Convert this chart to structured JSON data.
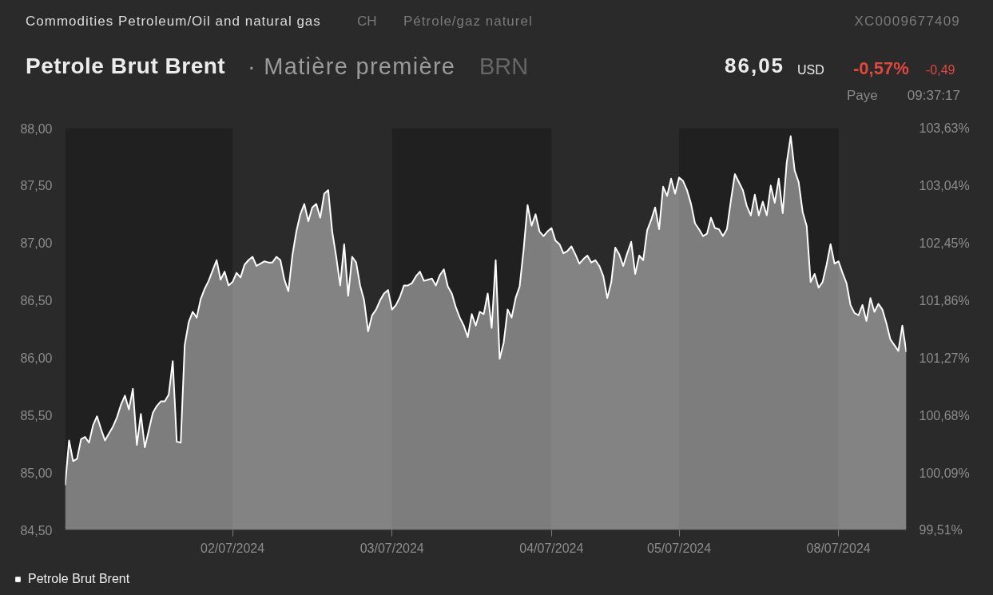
{
  "chart_data": {
    "type": "area",
    "title": "Petrole Brut Brent",
    "annotations": [
      "Commodities Petroleum/Oil and natural gas",
      "CH",
      "Pétrole/gaz naturel",
      "XC0009677409",
      "· Matière première",
      "BRN",
      "86,05",
      "USD",
      "-0,57%",
      "-0,49",
      "Paye",
      "09:37:17"
    ],
    "categories": [
      null,
      null,
      null,
      null,
      null,
      null,
      null,
      null,
      null,
      null,
      null,
      null,
      null,
      null,
      null,
      null,
      null,
      null,
      null,
      null,
      null,
      null,
      null,
      null,
      null,
      null,
      null,
      null,
      null,
      null,
      null,
      null,
      null,
      null,
      null,
      null,
      null,
      null,
      null,
      null,
      null,
      null,
      "02/07/2024",
      null,
      null,
      null,
      null,
      null,
      null,
      null,
      null,
      null,
      null,
      null,
      null,
      null,
      null,
      null,
      null,
      null,
      null,
      null,
      null,
      null,
      null,
      null,
      null,
      null,
      null,
      null,
      null,
      null,
      null,
      null,
      null,
      null,
      null,
      null,
      null,
      null,
      null,
      null,
      "03/07/2024",
      null,
      null,
      null,
      null,
      null,
      null,
      null,
      null,
      null,
      null,
      null,
      null,
      null,
      null,
      null,
      null,
      null,
      null,
      null,
      null,
      null,
      null,
      null,
      null,
      null,
      null,
      null,
      null,
      null,
      null,
      null,
      null,
      null,
      null,
      null,
      null,
      null,
      null,
      null,
      "04/07/2024",
      null,
      null,
      null,
      null,
      null,
      null,
      null,
      null,
      null,
      null,
      null,
      null,
      null,
      null,
      null,
      null,
      null,
      null,
      null,
      null,
      null,
      null,
      null,
      null,
      null,
      null,
      null,
      null,
      null,
      null,
      null,
      "05/07/2024",
      null,
      null,
      null,
      null,
      null,
      null,
      null,
      null,
      null,
      null,
      null,
      null,
      null,
      null,
      null,
      null,
      null,
      null,
      null,
      null,
      null,
      null,
      null,
      null,
      null,
      null,
      null,
      null,
      null,
      null,
      null,
      null,
      null,
      null,
      null,
      null,
      null,
      null,
      null,
      "08/07/2024",
      null,
      null,
      null,
      null,
      null,
      null,
      null,
      null,
      null,
      null,
      null,
      null,
      null,
      null,
      null,
      null,
      null
    ],
    "series": [
      {
        "name": "Petrole Brut Brent",
        "color": "#ffffff",
        "values": [
          84.89,
          85.28,
          85.1,
          85.12,
          85.29,
          85.31,
          85.26,
          85.41,
          85.49,
          85.38,
          85.28,
          85.34,
          85.4,
          85.48,
          85.59,
          85.67,
          85.55,
          85.73,
          85.24,
          85.51,
          85.22,
          85.37,
          85.52,
          85.58,
          85.62,
          85.62,
          85.68,
          85.97,
          85.27,
          85.26,
          86.11,
          86.31,
          86.4,
          86.35,
          86.51,
          86.6,
          86.67,
          86.76,
          86.85,
          86.68,
          86.75,
          86.63,
          86.66,
          86.74,
          86.7,
          86.81,
          86.85,
          86.88,
          86.8,
          86.82,
          86.84,
          86.83,
          86.83,
          86.88,
          86.85,
          86.68,
          86.58,
          86.89,
          87.1,
          87.25,
          87.34,
          87.19,
          87.31,
          87.34,
          87.22,
          87.43,
          87.46,
          87.1,
          86.88,
          86.63,
          86.99,
          86.54,
          86.88,
          86.83,
          86.63,
          86.5,
          86.23,
          86.37,
          86.42,
          86.5,
          86.56,
          86.59,
          86.42,
          86.46,
          86.53,
          86.63,
          86.63,
          86.65,
          86.71,
          86.75,
          86.67,
          86.68,
          86.69,
          86.63,
          86.72,
          86.77,
          86.62,
          86.56,
          86.44,
          86.35,
          86.28,
          86.18,
          86.38,
          86.28,
          86.4,
          86.38,
          86.56,
          86.26,
          86.85,
          85.99,
          86.13,
          86.42,
          86.35,
          86.52,
          86.62,
          86.94,
          87.33,
          87.15,
          87.25,
          87.1,
          87.06,
          87.1,
          87.13,
          87.02,
          86.99,
          86.91,
          86.93,
          86.97,
          86.9,
          86.82,
          86.86,
          86.89,
          86.83,
          86.85,
          86.8,
          86.71,
          86.52,
          86.66,
          86.96,
          86.9,
          86.8,
          86.91,
          87.01,
          86.73,
          86.89,
          86.85,
          87.11,
          87.2,
          87.31,
          87.12,
          87.49,
          87.41,
          87.56,
          87.43,
          87.57,
          87.54,
          87.46,
          87.34,
          87.17,
          87.12,
          87.06,
          87.08,
          87.22,
          87.13,
          87.12,
          87.06,
          87.12,
          87.37,
          87.6,
          87.53,
          87.46,
          87.32,
          87.24,
          87.42,
          87.24,
          87.36,
          87.24,
          87.5,
          87.35,
          87.56,
          87.26,
          87.7,
          87.93,
          87.63,
          87.53,
          87.27,
          87.15,
          86.66,
          86.73,
          86.61,
          86.66,
          86.81,
          86.99,
          86.82,
          86.84,
          86.74,
          86.65,
          86.46,
          86.39,
          86.37,
          86.46,
          86.32,
          86.52,
          86.4,
          86.47,
          86.42,
          86.3,
          86.16,
          86.11,
          86.06,
          86.28,
          86.05
        ]
      }
    ],
    "ylim": [
      84.5,
      88.0
    ],
    "yticks": [
      {
        "value": 84.5,
        "label": "84,50"
      },
      {
        "value": 85.0,
        "label": "85,00"
      },
      {
        "value": 85.5,
        "label": "85,50"
      },
      {
        "value": 86.0,
        "label": "86,00"
      },
      {
        "value": 86.5,
        "label": "86,50"
      },
      {
        "value": 87.0,
        "label": "87,00"
      },
      {
        "value": 87.5,
        "label": "87,50"
      },
      {
        "value": 88.0,
        "label": "88,00"
      }
    ],
    "y2lim": [
      99.51,
      103.63
    ],
    "y2ticks": [
      {
        "value": 99.51,
        "label": "99,51%"
      },
      {
        "value": 100.09,
        "label": "100,09%"
      },
      {
        "value": 100.68,
        "label": "100,68%"
      },
      {
        "value": 101.27,
        "label": "101,27%"
      },
      {
        "value": 101.86,
        "label": "101,86%"
      },
      {
        "value": 102.45,
        "label": "102,45%"
      },
      {
        "value": 103.04,
        "label": "103,04%"
      },
      {
        "value": 103.63,
        "label": "103,63%"
      }
    ],
    "bands": [
      {
        "axis": "x",
        "from": "03/07/2024",
        "to": "04/07/2024",
        "color": "#202020"
      },
      {
        "axis": "x",
        "from": "05/07/2024",
        "to": "08/07/2024",
        "color": "#202020"
      }
    ],
    "legend": "bottom left"
  }
}
